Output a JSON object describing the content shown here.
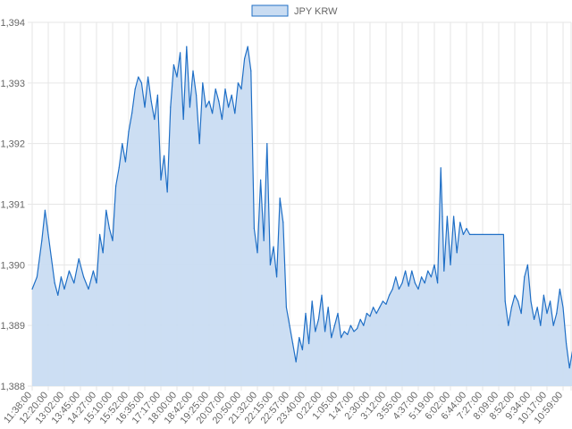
{
  "chart_data": {
    "type": "area",
    "legend": {
      "label": "JPY KRW",
      "position": "top"
    },
    "grid": true,
    "colors": {
      "line": "#1f6fc6",
      "fill": "#c9dcf2",
      "grid": "#e6e6e6"
    },
    "ylim": [
      1388,
      1394
    ],
    "y_ticks": [
      "1,388",
      "1,389",
      "1,390",
      "1,391",
      "1,392",
      "1,393",
      "1,394"
    ],
    "y_tick_values": [
      1388,
      1389,
      1390,
      1391,
      1392,
      1393,
      1394
    ],
    "x_ticks": [
      "11:38:00",
      "12:20:00",
      "13:02:00",
      "13:45:00",
      "14:27:00",
      "15:10:00",
      "15:52:00",
      "16:35:00",
      "17:17:00",
      "18:00:00",
      "18:42:00",
      "19:25:00",
      "20:07:00",
      "20:50:00",
      "21:32:00",
      "22:15:00",
      "22:57:00",
      "23:40:00",
      "0:22:00",
      "1:05:00",
      "1:47:00",
      "2:30:00",
      "3:12:00",
      "3:55:00",
      "4:37:00",
      "5:19:00",
      "6:02:00",
      "6:44:00",
      "7:27:00",
      "8:09:00",
      "8:52:00",
      "9:34:00",
      "10:17:00",
      "10:59:00"
    ],
    "series": [
      {
        "name": "JPY KRW",
        "points": [
          [
            0,
            1389.6
          ],
          [
            0.3,
            1389.8
          ],
          [
            0.6,
            1390.4
          ],
          [
            0.8,
            1390.9
          ],
          [
            1.0,
            1390.5
          ],
          [
            1.2,
            1390.1
          ],
          [
            1.4,
            1389.7
          ],
          [
            1.6,
            1389.5
          ],
          [
            1.8,
            1389.8
          ],
          [
            2.0,
            1389.6
          ],
          [
            2.3,
            1389.9
          ],
          [
            2.6,
            1389.7
          ],
          [
            2.9,
            1390.1
          ],
          [
            3.2,
            1389.8
          ],
          [
            3.5,
            1389.6
          ],
          [
            3.8,
            1389.9
          ],
          [
            4.0,
            1389.7
          ],
          [
            4.2,
            1390.5
          ],
          [
            4.4,
            1390.2
          ],
          [
            4.6,
            1390.9
          ],
          [
            4.8,
            1390.6
          ],
          [
            5.0,
            1390.4
          ],
          [
            5.2,
            1391.3
          ],
          [
            5.4,
            1391.6
          ],
          [
            5.6,
            1392.0
          ],
          [
            5.8,
            1391.7
          ],
          [
            6.0,
            1392.2
          ],
          [
            6.2,
            1392.5
          ],
          [
            6.4,
            1392.9
          ],
          [
            6.6,
            1393.1
          ],
          [
            6.8,
            1393.0
          ],
          [
            7.0,
            1392.6
          ],
          [
            7.2,
            1393.1
          ],
          [
            7.4,
            1392.7
          ],
          [
            7.6,
            1392.4
          ],
          [
            7.8,
            1392.8
          ],
          [
            8.0,
            1391.4
          ],
          [
            8.2,
            1391.8
          ],
          [
            8.4,
            1391.2
          ],
          [
            8.6,
            1392.6
          ],
          [
            8.8,
            1393.3
          ],
          [
            9.0,
            1393.1
          ],
          [
            9.2,
            1393.5
          ],
          [
            9.4,
            1392.4
          ],
          [
            9.6,
            1393.6
          ],
          [
            9.8,
            1392.6
          ],
          [
            10.0,
            1393.2
          ],
          [
            10.2,
            1392.8
          ],
          [
            10.4,
            1392.0
          ],
          [
            10.6,
            1393.0
          ],
          [
            10.8,
            1392.6
          ],
          [
            11.0,
            1392.7
          ],
          [
            11.2,
            1392.5
          ],
          [
            11.4,
            1392.9
          ],
          [
            11.6,
            1392.7
          ],
          [
            11.8,
            1392.4
          ],
          [
            12.0,
            1392.9
          ],
          [
            12.2,
            1392.6
          ],
          [
            12.4,
            1392.8
          ],
          [
            12.6,
            1392.5
          ],
          [
            12.8,
            1393.0
          ],
          [
            13.0,
            1392.9
          ],
          [
            13.2,
            1393.4
          ],
          [
            13.4,
            1393.6
          ],
          [
            13.6,
            1393.2
          ],
          [
            13.8,
            1390.6
          ],
          [
            14.0,
            1390.2
          ],
          [
            14.2,
            1391.4
          ],
          [
            14.4,
            1390.4
          ],
          [
            14.6,
            1392.0
          ],
          [
            14.8,
            1390.0
          ],
          [
            15.0,
            1390.3
          ],
          [
            15.2,
            1389.8
          ],
          [
            15.4,
            1391.1
          ],
          [
            15.6,
            1390.7
          ],
          [
            15.8,
            1389.3
          ],
          [
            16.0,
            1389.0
          ],
          [
            16.2,
            1388.7
          ],
          [
            16.4,
            1388.4
          ],
          [
            16.6,
            1388.8
          ],
          [
            16.8,
            1388.6
          ],
          [
            17.0,
            1389.2
          ],
          [
            17.2,
            1388.7
          ],
          [
            17.4,
            1389.4
          ],
          [
            17.6,
            1388.9
          ],
          [
            17.8,
            1389.1
          ],
          [
            18.0,
            1389.5
          ],
          [
            18.2,
            1388.9
          ],
          [
            18.4,
            1389.3
          ],
          [
            18.6,
            1388.8
          ],
          [
            18.8,
            1389.0
          ],
          [
            19.0,
            1389.2
          ],
          [
            19.2,
            1388.8
          ],
          [
            19.4,
            1388.9
          ],
          [
            19.6,
            1388.85
          ],
          [
            19.8,
            1389.0
          ],
          [
            20.0,
            1388.9
          ],
          [
            20.2,
            1388.95
          ],
          [
            20.4,
            1389.1
          ],
          [
            20.6,
            1389.0
          ],
          [
            20.8,
            1389.2
          ],
          [
            21.0,
            1389.15
          ],
          [
            21.2,
            1389.3
          ],
          [
            21.4,
            1389.2
          ],
          [
            21.6,
            1389.3
          ],
          [
            21.8,
            1389.4
          ],
          [
            22.0,
            1389.35
          ],
          [
            22.2,
            1389.5
          ],
          [
            22.4,
            1389.6
          ],
          [
            22.6,
            1389.8
          ],
          [
            22.8,
            1389.6
          ],
          [
            23.0,
            1389.7
          ],
          [
            23.2,
            1389.9
          ],
          [
            23.4,
            1389.65
          ],
          [
            23.6,
            1389.9
          ],
          [
            23.8,
            1389.7
          ],
          [
            24.0,
            1389.6
          ],
          [
            24.2,
            1389.8
          ],
          [
            24.4,
            1389.7
          ],
          [
            24.6,
            1389.9
          ],
          [
            24.8,
            1389.8
          ],
          [
            25.0,
            1390.0
          ],
          [
            25.2,
            1389.7
          ],
          [
            25.4,
            1391.6
          ],
          [
            25.5,
            1390.8
          ],
          [
            25.6,
            1389.9
          ],
          [
            25.8,
            1390.8
          ],
          [
            26.0,
            1390.0
          ],
          [
            26.2,
            1390.8
          ],
          [
            26.4,
            1390.2
          ],
          [
            26.6,
            1390.7
          ],
          [
            26.8,
            1390.5
          ],
          [
            27.0,
            1390.6
          ],
          [
            27.2,
            1390.5
          ],
          [
            27.5,
            1390.5
          ],
          [
            28.0,
            1390.5
          ],
          [
            28.5,
            1390.5
          ],
          [
            29.0,
            1390.5
          ],
          [
            29.3,
            1390.5
          ],
          [
            29.4,
            1389.4
          ],
          [
            29.6,
            1389.0
          ],
          [
            29.8,
            1389.3
          ],
          [
            30.0,
            1389.5
          ],
          [
            30.2,
            1389.4
          ],
          [
            30.4,
            1389.2
          ],
          [
            30.6,
            1389.8
          ],
          [
            30.8,
            1390.0
          ],
          [
            31.0,
            1389.4
          ],
          [
            31.2,
            1389.1
          ],
          [
            31.4,
            1389.3
          ],
          [
            31.6,
            1389.0
          ],
          [
            31.8,
            1389.5
          ],
          [
            32.0,
            1389.2
          ],
          [
            32.2,
            1389.4
          ],
          [
            32.4,
            1389.0
          ],
          [
            32.6,
            1389.2
          ],
          [
            32.8,
            1389.6
          ],
          [
            33.0,
            1389.3
          ],
          [
            33.2,
            1388.7
          ],
          [
            33.4,
            1388.3
          ],
          [
            33.6,
            1388.6
          ],
          [
            33.8,
            1389.1
          ]
        ]
      }
    ]
  }
}
